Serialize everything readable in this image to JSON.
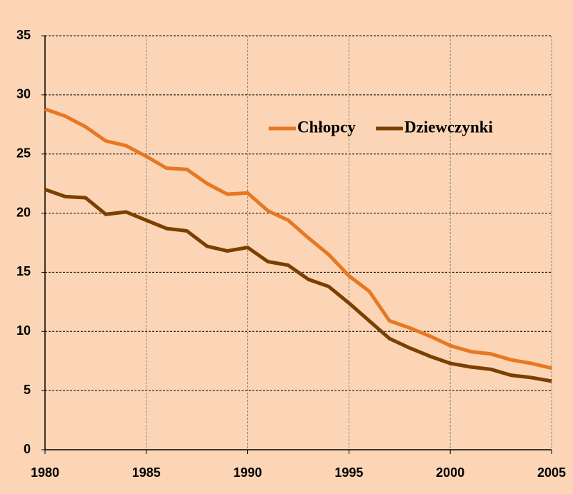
{
  "chart_data": {
    "type": "line",
    "x": [
      1980,
      1981,
      1982,
      1983,
      1984,
      1985,
      1986,
      1987,
      1988,
      1989,
      1990,
      1991,
      1992,
      1993,
      1994,
      1995,
      1996,
      1997,
      1998,
      1999,
      2000,
      2001,
      2002,
      2003,
      2004,
      2005
    ],
    "series": [
      {
        "name": "Chłopcy",
        "color": "#e87722",
        "values": [
          28.8,
          28.2,
          27.3,
          26.1,
          25.7,
          24.8,
          23.8,
          23.7,
          22.5,
          21.6,
          21.7,
          20.2,
          19.4,
          17.9,
          16.5,
          14.7,
          13.4,
          10.9,
          10.3,
          9.6,
          8.8,
          8.3,
          8.1,
          7.6,
          7.3,
          6.9
        ]
      },
      {
        "name": "Dziewczynki",
        "color": "#7b3f00",
        "values": [
          22.0,
          21.4,
          21.3,
          19.9,
          20.1,
          19.4,
          18.7,
          18.5,
          17.2,
          16.8,
          17.1,
          15.9,
          15.6,
          14.4,
          13.8,
          12.4,
          10.9,
          9.4,
          8.6,
          7.9,
          7.3,
          7.0,
          6.8,
          6.3,
          6.1,
          5.8
        ]
      }
    ],
    "xlim": [
      1980,
      2005
    ],
    "xticks": [
      1980,
      1985,
      1990,
      1995,
      2000,
      2005
    ],
    "ylim": [
      0,
      35
    ],
    "yticks": [
      0,
      5,
      10,
      15,
      20,
      25,
      30,
      35
    ],
    "grid": true,
    "legend": "upper right"
  }
}
